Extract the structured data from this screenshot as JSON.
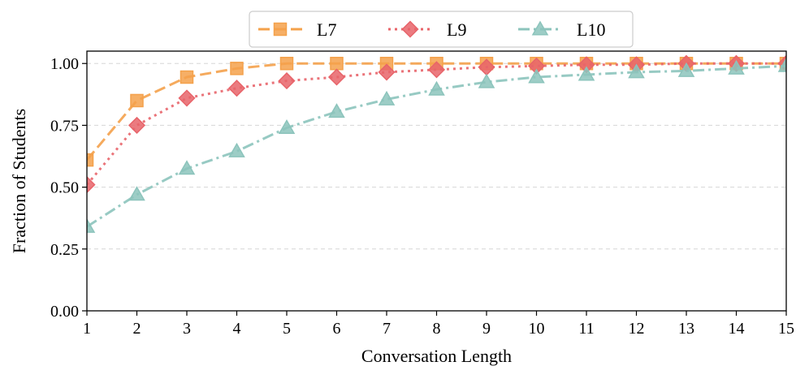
{
  "chart_data": {
    "type": "line",
    "title": "",
    "xlabel": "Conversation Length",
    "ylabel": "Fraction of Students",
    "x": [
      1,
      2,
      3,
      4,
      5,
      6,
      7,
      8,
      9,
      10,
      11,
      12,
      13,
      14,
      15
    ],
    "xlim": [
      1,
      15
    ],
    "ylim": [
      0,
      1.05
    ],
    "xticks": [
      "1",
      "2",
      "3",
      "4",
      "5",
      "6",
      "7",
      "8",
      "9",
      "10",
      "11",
      "12",
      "13",
      "14",
      "15"
    ],
    "yticks": [
      {
        "value": 0,
        "label": "0.00"
      },
      {
        "value": 0.25,
        "label": "0.25"
      },
      {
        "value": 0.5,
        "label": "0.50"
      },
      {
        "value": 0.75,
        "label": "0.75"
      },
      {
        "value": 1.0,
        "label": "1.00"
      }
    ],
    "grid": "horizontal-dashed",
    "legend_position": "top-center",
    "series": [
      {
        "name": "L7",
        "color": "#F4A14B",
        "marker": "square",
        "dash": "dashed",
        "values": [
          0.61,
          0.85,
          0.945,
          0.98,
          1.0,
          1.0,
          1.0,
          1.0,
          1.0,
          1.0,
          1.0,
          1.0,
          1.0,
          1.0,
          1.0
        ]
      },
      {
        "name": "L9",
        "color": "#E8646A",
        "marker": "diamond",
        "dash": "dotted",
        "values": [
          0.51,
          0.75,
          0.86,
          0.9,
          0.93,
          0.945,
          0.965,
          0.975,
          0.985,
          0.99,
          0.995,
          0.995,
          1.0,
          1.0,
          1.0
        ]
      },
      {
        "name": "L10",
        "color": "#8CC4BC",
        "marker": "triangle",
        "dash": "dashdot",
        "values": [
          0.34,
          0.47,
          0.575,
          0.645,
          0.74,
          0.805,
          0.855,
          0.895,
          0.925,
          0.945,
          0.955,
          0.965,
          0.97,
          0.98,
          0.99
        ]
      }
    ]
  }
}
